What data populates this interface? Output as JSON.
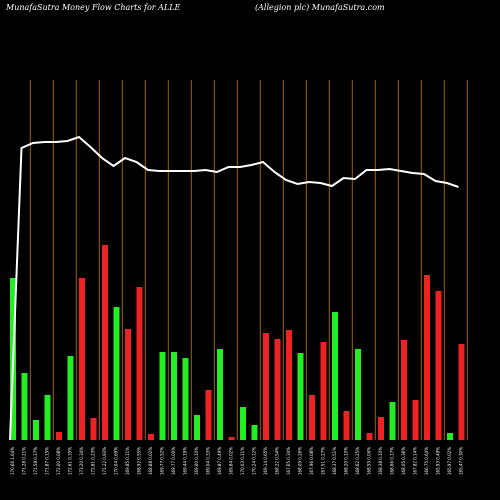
{
  "chart_data": {
    "type": "bar",
    "title": "MunafaSutra  Money Flow  Charts for ALLE",
    "subtitle": "(Allegion  plc) MunafaSutra.com",
    "grid": true,
    "grid_color": "#c87800",
    "categories": [
      "170.66 1.64%",
      "171.28 0.21%",
      "171.58 0.17%",
      "171.87 0.15%",
      "172.00 0.08%",
      "172.61 0.35%",
      "173.20 0.34%",
      "172.81 0.23%",
      "171.22 0.93%",
      "170.04 0.69%",
      "169.85 0.11%",
      "168.92 0.55%",
      "168.88 0.02%",
      "169.77 0.52%",
      "169.77 0.00%",
      "169.44 0.19%",
      "169.60 0.10%",
      "169.04 0.33%",
      "169.87 0.49%",
      "169.84 0.02%",
      "170.03 0.11%",
      "170.24 0.12%",
      "169.14 0.65%",
      "168.22 0.54%",
      "167.65 0.34%",
      "168.09 0.26%",
      "167.96 0.08%",
      "167.51 0.27%",
      "168.37 0.51%",
      "168.20 0.10%",
      "168.62 0.25%",
      "168.55 0.04%",
      "168.38 0.10%",
      "168.66 0.17%",
      "168.05 0.36%",
      "167.82 0.14%",
      "166.75 0.64%",
      "165.93 0.49%",
      "165.97 0.02%",
      "165.47 0.30%"
    ],
    "ylim": [
      0,
      360
    ],
    "series": [
      {
        "name": "Money Flow",
        "up_color": "#22ee22",
        "down_color": "#ee2222",
        "direction": [
          "up",
          "up",
          "up",
          "up",
          "down",
          "up",
          "down",
          "down",
          "down",
          "up",
          "down",
          "down",
          "down",
          "up",
          "up",
          "up",
          "up",
          "down",
          "up",
          "down",
          "up",
          "up",
          "down",
          "down",
          "down",
          "up",
          "down",
          "down",
          "up",
          "down",
          "up",
          "down",
          "down",
          "up",
          "down",
          "down",
          "down",
          "down",
          "up",
          "down"
        ],
        "values": [
          162,
          67,
          20,
          45,
          8,
          84,
          162,
          22,
          195,
          133,
          111,
          153,
          6,
          88,
          88,
          82,
          25,
          50,
          91,
          3,
          33,
          15,
          107,
          101,
          110,
          87,
          45,
          98,
          128,
          29,
          91,
          7,
          23,
          38,
          100,
          40,
          165,
          149,
          7,
          96
        ]
      },
      {
        "name": "Price",
        "type": "line",
        "axis": "y2",
        "color": "#ffffff",
        "values": [
          0,
          292,
          297,
          298,
          298,
          299,
          303,
          293,
          282,
          274,
          282,
          278,
          270,
          269,
          269,
          269,
          269,
          270,
          268,
          273,
          273,
          275,
          278,
          268,
          260,
          256,
          258,
          257,
          254,
          262,
          261,
          270,
          270,
          271,
          269,
          267,
          266,
          259,
          257,
          253
        ]
      }
    ],
    "y2lim": [
      0,
      360
    ]
  }
}
